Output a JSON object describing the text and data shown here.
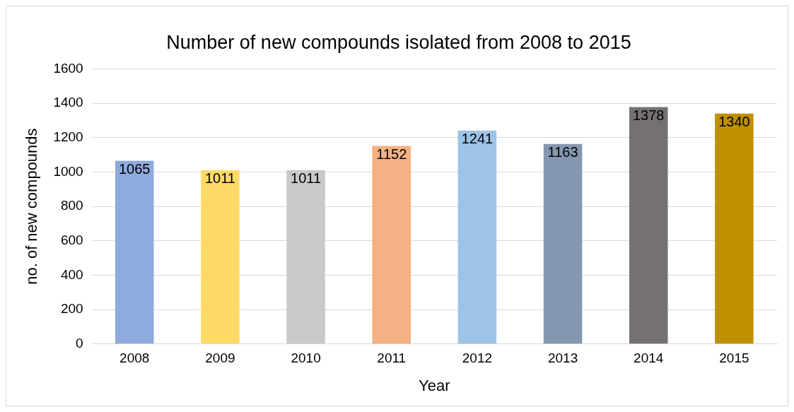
{
  "chart_data": {
    "type": "bar",
    "title": "Number of new compounds isolated from 2008 to 2015",
    "xlabel": "Year",
    "ylabel": "no. of new compounds",
    "categories": [
      "2008",
      "2009",
      "2010",
      "2011",
      "2012",
      "2013",
      "2014",
      "2015"
    ],
    "values": [
      1065,
      1011,
      1011,
      1152,
      1241,
      1163,
      1378,
      1340
    ],
    "colors": [
      "#8faadc",
      "#ffd966",
      "#c9c9c9",
      "#f4b183",
      "#9dc3e6",
      "#8497b0",
      "#757171",
      "#bf9000"
    ],
    "ylim": [
      0,
      1600
    ],
    "yticks": [
      0,
      200,
      400,
      600,
      800,
      1000,
      1200,
      1400,
      1600
    ],
    "grid": "y",
    "legend": false,
    "data_labels": true
  }
}
